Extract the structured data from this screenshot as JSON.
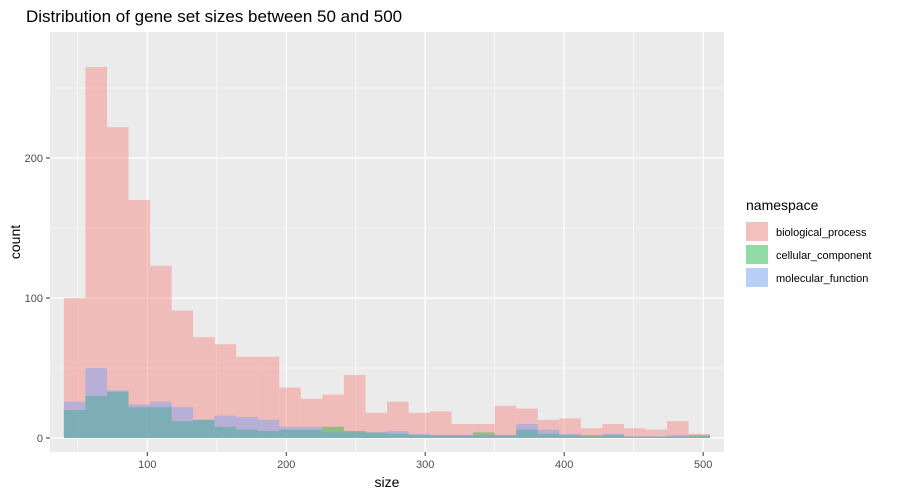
{
  "chart_data": {
    "type": "histogram",
    "title": "Distribution of gene set sizes between 50 and 500",
    "xlabel": "size",
    "ylabel": "count",
    "xlim": [
      30,
      515
    ],
    "ylim": [
      -10,
      290
    ],
    "x_ticks": [
      100,
      200,
      300,
      400,
      500
    ],
    "y_ticks": [
      0,
      100,
      200
    ],
    "bin_width": 15.5,
    "bin_start": 40,
    "grid": true,
    "legend": {
      "title": "namespace",
      "position": "right"
    },
    "series": [
      {
        "name": "biological_process",
        "color": "#F8766D",
        "values": [
          100,
          265,
          222,
          170,
          123,
          91,
          72,
          67,
          58,
          58,
          36,
          28,
          31,
          45,
          18,
          26,
          18,
          19,
          10,
          10,
          23,
          21,
          13,
          14,
          7,
          10,
          7,
          6,
          12,
          3
        ]
      },
      {
        "name": "cellular_component",
        "color": "#00BA38",
        "values": [
          20,
          30,
          33,
          22,
          22,
          12,
          13,
          8,
          6,
          5,
          6,
          6,
          8,
          5,
          4,
          3,
          2,
          2,
          2,
          4,
          2,
          6,
          3,
          2,
          2,
          2,
          1,
          1,
          1,
          2
        ]
      },
      {
        "name": "molecular_function",
        "color": "#619CFF",
        "values": [
          26,
          50,
          34,
          24,
          26,
          22,
          13,
          16,
          15,
          13,
          8,
          8,
          4,
          4,
          4,
          5,
          3,
          2,
          2,
          2,
          2,
          10,
          6,
          3,
          1,
          3,
          1,
          1,
          2,
          1
        ]
      }
    ]
  }
}
